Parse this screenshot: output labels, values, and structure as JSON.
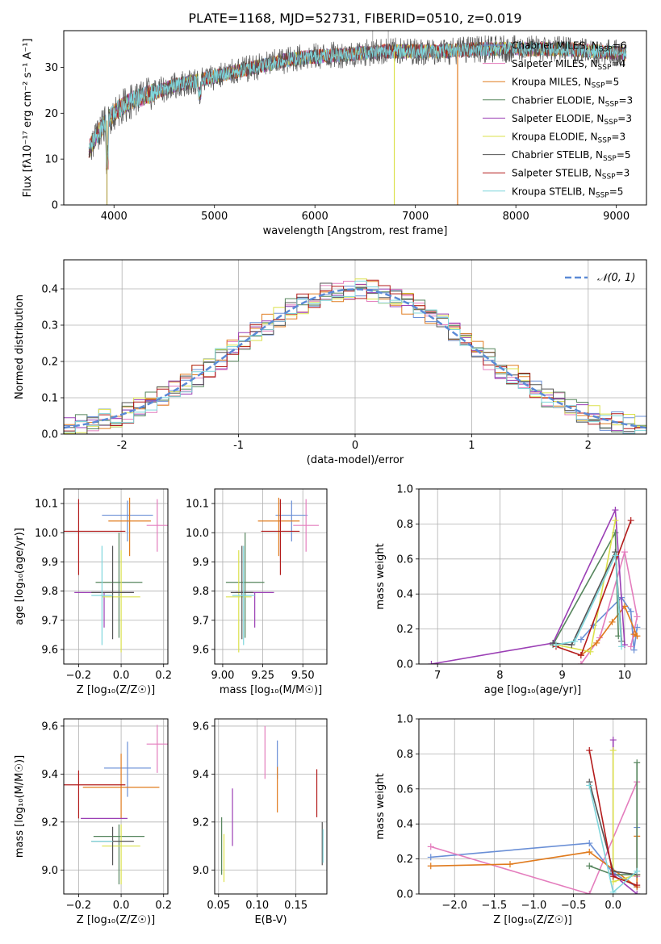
{
  "figure_title": "PLATE=1168, MJD=52731, FIBERID=0510, z=0.019",
  "colors": {
    "chabrier_miles": "#6a8fd6",
    "salpeter_miles": "#e47dbd",
    "kroupa_miles": "#e07b1e",
    "chabrier_elodie": "#55855c",
    "salpeter_elodie": "#9b3fb5",
    "kroupa_elodie": "#dbe14b",
    "chabrier_stelib": "#555555",
    "salpeter_stelib": "#b31b1b",
    "kroupa_stelib": "#7fd6dc"
  },
  "chart_data": [
    {
      "id": "spectrum",
      "type": "line",
      "title": "PLATE=1168, MJD=52731, FIBERID=0510, z=0.019",
      "xlabel": "wavelength [Angstrom, rest frame]",
      "ylabel": "Flux [fλ10⁻¹⁷ erg cm⁻² s⁻¹ A⁻¹]",
      "xlim": [
        3500,
        9300
      ],
      "ylim": [
        0,
        38
      ],
      "xticks": [
        4000,
        5000,
        6000,
        7000,
        8000,
        9000
      ],
      "yticks": [
        0,
        10,
        20,
        30
      ],
      "legend_position": "right",
      "legend": [
        {
          "text": "Chabrier MILES, N",
          "sub": "SSP",
          "tail": "=6",
          "color": "#6a8fd6"
        },
        {
          "text": "Salpeter MILES, N",
          "sub": "SSP",
          "tail": "=4",
          "color": "#e47dbd"
        },
        {
          "text": "Kroupa MILES, N",
          "sub": "SSP",
          "tail": "=5",
          "color": "#e07b1e"
        },
        {
          "text": "Chabrier ELODIE, N",
          "sub": "SSP",
          "tail": "=3",
          "color": "#55855c"
        },
        {
          "text": "Salpeter ELODIE, N",
          "sub": "SSP",
          "tail": "=3",
          "color": "#9b3fb5"
        },
        {
          "text": "Kroupa ELODIE, N",
          "sub": "SSP",
          "tail": "=3",
          "color": "#dbe14b"
        },
        {
          "text": "Chabrier STELIB, N",
          "sub": "SSP",
          "tail": "=5",
          "color": "#555555"
        },
        {
          "text": "Salpeter STELIB, N",
          "sub": "SSP",
          "tail": "=3",
          "color": "#b31b1b"
        },
        {
          "text": "Kroupa STELIB, N",
          "sub": "SSP",
          "tail": "=5",
          "color": "#7fd6dc"
        }
      ],
      "continuum": {
        "x": [
          3750,
          3850,
          3950,
          4050,
          4200,
          4400,
          4600,
          4800,
          5000,
          5200,
          5500,
          5800,
          6100,
          6400,
          6700,
          7000,
          7300,
          7600,
          7900,
          8200,
          8500,
          8800,
          9100
        ],
        "y": [
          12,
          16,
          19,
          21,
          23,
          24.5,
          26,
          27,
          28,
          29,
          30.5,
          32,
          32.5,
          33,
          33.5,
          33.5,
          33.5,
          34,
          34,
          34,
          34,
          33.5,
          33
        ]
      },
      "drops": [
        {
          "x": 3930,
          "color": "#b2a04a"
        },
        {
          "x": 6790,
          "color": "#dbe14b"
        },
        {
          "x": 7420,
          "color": "#e07b1e"
        }
      ],
      "spikes": [
        {
          "x": 6575,
          "y": 38
        },
        {
          "x": 6730,
          "y": 38
        }
      ]
    },
    {
      "id": "residuals",
      "type": "step",
      "xlabel": "(data-model)/error",
      "ylabel": "Normed distribution",
      "xlim": [
        -2.5,
        2.5
      ],
      "ylim": [
        0,
        0.48
      ],
      "xticks": [
        -2,
        -1,
        0,
        1,
        2
      ],
      "yticks": [
        0.0,
        0.1,
        0.2,
        0.3,
        0.4
      ],
      "legend_position": "top-right",
      "legend": "𝒩(0, 1)",
      "gaussian": {
        "mean": 0,
        "sigma": 1,
        "color": "#5b8ad6"
      },
      "bin_width": 0.1
    },
    {
      "id": "age_vs_Z",
      "type": "errorbar",
      "xlabel": "Z [log₁₀(Z/Z☉)]",
      "ylabel": "age  [log₁₀(age/yr)]",
      "xlim": [
        -0.27,
        0.22
      ],
      "ylim": [
        9.55,
        10.15
      ],
      "xticks": [
        -0.2,
        0.0,
        0.2
      ],
      "yticks": [
        9.6,
        9.7,
        9.8,
        9.9,
        10.0,
        10.1
      ],
      "points": [
        {
          "x": 0.03,
          "y": 10.06,
          "xerr": 0.12,
          "yerr": [
            0.09,
            0.05
          ],
          "color": "#6a8fd6"
        },
        {
          "x": 0.17,
          "y": 10.025,
          "xerr": 0.05,
          "yerr": [
            0.09,
            0.09
          ],
          "color": "#e47dbd"
        },
        {
          "x": 0.04,
          "y": 10.04,
          "xerr": 0.1,
          "yerr": [
            0.12,
            0.08
          ],
          "color": "#e07b1e"
        },
        {
          "x": -0.01,
          "y": 9.83,
          "xerr": 0.11,
          "yerr": [
            0.19,
            0.17
          ],
          "color": "#55855c"
        },
        {
          "x": -0.08,
          "y": 9.795,
          "xerr": 0.14,
          "yerr": [
            0.12,
            0.0
          ],
          "color": "#9b3fb5"
        },
        {
          "x": 0.0,
          "y": 9.78,
          "xerr": 0.09,
          "yerr": [
            0.19,
            0.16
          ],
          "color": "#dbe14b"
        },
        {
          "x": -0.04,
          "y": 9.795,
          "xerr": 0.1,
          "yerr": [
            0.16,
            0.16
          ],
          "color": "#555555"
        },
        {
          "x": -0.2,
          "y": 10.005,
          "xerr": 0.22,
          "yerr": [
            0.15,
            0.11
          ],
          "color": "#b31b1b"
        },
        {
          "x": -0.09,
          "y": 9.785,
          "xerr": 0.05,
          "yerr": [
            0.17,
            0.17
          ],
          "color": "#7fd6dc"
        }
      ]
    },
    {
      "id": "age_vs_mass",
      "type": "errorbar",
      "xlabel": "mass [log₁₀(M/M☉)]",
      "xlim": [
        8.95,
        9.65
      ],
      "ylim": [
        9.55,
        10.15
      ],
      "xticks": [
        9.0,
        9.25,
        9.5
      ],
      "yticks": [
        9.6,
        9.7,
        9.8,
        9.9,
        10.0,
        10.1
      ],
      "points": [
        {
          "x": 9.43,
          "y": 10.06,
          "xerr": 0.1,
          "yerr": [
            0.09,
            0.05
          ],
          "color": "#6a8fd6"
        },
        {
          "x": 9.52,
          "y": 10.025,
          "xerr": 0.08,
          "yerr": [
            0.09,
            0.09
          ],
          "color": "#e47dbd"
        },
        {
          "x": 9.35,
          "y": 10.04,
          "xerr": 0.13,
          "yerr": [
            0.12,
            0.08
          ],
          "color": "#e07b1e"
        },
        {
          "x": 9.14,
          "y": 9.83,
          "xerr": 0.12,
          "yerr": [
            0.19,
            0.17
          ],
          "color": "#55855c"
        },
        {
          "x": 9.2,
          "y": 9.795,
          "xerr": 0.12,
          "yerr": [
            0.12,
            0.0
          ],
          "color": "#9b3fb5"
        },
        {
          "x": 9.1,
          "y": 9.78,
          "xerr": 0.08,
          "yerr": [
            0.19,
            0.16
          ],
          "color": "#dbe14b"
        },
        {
          "x": 9.12,
          "y": 9.795,
          "xerr": 0.07,
          "yerr": [
            0.16,
            0.16
          ],
          "color": "#555555"
        },
        {
          "x": 9.36,
          "y": 10.005,
          "xerr": 0.12,
          "yerr": [
            0.15,
            0.11
          ],
          "color": "#b31b1b"
        },
        {
          "x": 9.13,
          "y": 9.785,
          "xerr": 0.07,
          "yerr": [
            0.17,
            0.17
          ],
          "color": "#7fd6dc"
        }
      ]
    },
    {
      "id": "weight_vs_age",
      "type": "line",
      "xlabel": "age  [log₁₀(age/yr)]",
      "ylabel": "mass weight",
      "xlim": [
        6.7,
        10.35
      ],
      "ylim": [
        0,
        1
      ],
      "xticks": [
        7,
        8,
        9,
        10
      ],
      "yticks": [
        0.0,
        0.2,
        0.4,
        0.6,
        0.8,
        1.0
      ],
      "series": [
        {
          "color": "#6a8fd6",
          "x": [
            9.3,
            9.5,
            9.95,
            10.1,
            10.15,
            10.2
          ],
          "y": [
            0.14,
            0.22,
            0.38,
            0.3,
            0.08,
            0.21
          ]
        },
        {
          "color": "#e47dbd",
          "x": [
            9.3,
            9.6,
            10.0,
            10.2,
            10.1
          ],
          "y": [
            0.0,
            0.15,
            0.64,
            0.27,
            0.1
          ]
        },
        {
          "color": "#e07b1e",
          "x": [
            9.3,
            9.55,
            9.8,
            10.0,
            10.2,
            10.15
          ],
          "y": [
            0.05,
            0.12,
            0.24,
            0.33,
            0.16,
            0.17
          ]
        },
        {
          "color": "#55855c",
          "x": [
            8.85,
            9.85,
            9.9
          ],
          "y": [
            0.11,
            0.75,
            0.16
          ]
        },
        {
          "color": "#9b3fb5",
          "x": [
            6.9,
            8.85,
            9.85,
            10.0
          ],
          "y": [
            0.0,
            0.12,
            0.88,
            0.11
          ]
        },
        {
          "color": "#dbe14b",
          "x": [
            8.9,
            9.45,
            9.85
          ],
          "y": [
            0.11,
            0.07,
            0.82
          ]
        },
        {
          "color": "#555555",
          "x": [
            8.85,
            9.15,
            9.85,
            9.95
          ],
          "y": [
            0.12,
            0.11,
            0.64,
            0.13
          ]
        },
        {
          "color": "#b31b1b",
          "x": [
            8.9,
            9.3,
            10.1
          ],
          "y": [
            0.1,
            0.05,
            0.82
          ]
        },
        {
          "color": "#7fd6dc",
          "x": [
            8.9,
            9.2,
            9.85,
            9.95
          ],
          "y": [
            0.11,
            0.13,
            0.62,
            0.1
          ]
        }
      ]
    },
    {
      "id": "mass_vs_Z",
      "type": "errorbar",
      "xlabel": "Z [log₁₀(Z/Z☉)]",
      "ylabel": "mass [log₁₀(M/M☉)]",
      "xlim": [
        -0.27,
        0.22
      ],
      "ylim": [
        8.9,
        9.63
      ],
      "xticks": [
        -0.2,
        0.0,
        0.2
      ],
      "yticks": [
        9.0,
        9.2,
        9.4,
        9.6
      ],
      "points": [
        {
          "x": 0.03,
          "y": 9.425,
          "xerr": 0.11,
          "yerr": [
            0.12,
            0.11
          ],
          "color": "#6a8fd6"
        },
        {
          "x": 0.17,
          "y": 9.525,
          "xerr": 0.05,
          "yerr": [
            0.12,
            0.08
          ],
          "color": "#e47dbd"
        },
        {
          "x": 0.0,
          "y": 9.345,
          "xerr": 0.18,
          "yerr": [
            0.13,
            0.14
          ],
          "color": "#e07b1e"
        },
        {
          "x": -0.01,
          "y": 9.14,
          "xerr": 0.12,
          "yerr": [
            0.2,
            0.05
          ],
          "color": "#55855c"
        },
        {
          "x": -0.08,
          "y": 9.215,
          "xerr": 0.11,
          "yerr": [
            0.0,
            0.0
          ],
          "color": "#9b3fb5"
        },
        {
          "x": 0.0,
          "y": 9.1,
          "xerr": 0.09,
          "yerr": [
            0.16,
            0.09
          ],
          "color": "#dbe14b"
        },
        {
          "x": -0.04,
          "y": 9.12,
          "xerr": 0.1,
          "yerr": [
            0.1,
            0.06
          ],
          "color": "#555555"
        },
        {
          "x": -0.2,
          "y": 9.355,
          "xerr": 0.22,
          "yerr": [
            0.14,
            0.06
          ],
          "color": "#b31b1b"
        },
        {
          "x": -0.09,
          "y": 9.12,
          "xerr": 0.05,
          "yerr": [
            0.0,
            0.0
          ],
          "color": "#7fd6dc"
        }
      ]
    },
    {
      "id": "mass_vs_ebv",
      "type": "errorbar",
      "xlabel": "E(B-V)",
      "xlim": [
        0.045,
        0.19
      ],
      "ylim": [
        8.9,
        9.63
      ],
      "xticks": [
        0.05,
        0.1,
        0.15
      ],
      "yticks": [
        9.0,
        9.2,
        9.4,
        9.6
      ],
      "points": [
        {
          "x": 0.126,
          "y": 9.46,
          "xerr": 0,
          "yerr": [
            0.08,
            0.08
          ],
          "color": "#6a8fd6"
        },
        {
          "x": 0.11,
          "y": 9.5,
          "xerr": 0,
          "yerr": [
            0.12,
            0.1
          ],
          "color": "#e47dbd"
        },
        {
          "x": 0.126,
          "y": 9.33,
          "xerr": 0,
          "yerr": [
            0.09,
            0.1
          ],
          "color": "#e07b1e"
        },
        {
          "x": 0.054,
          "y": 9.1,
          "xerr": 0,
          "yerr": [
            0.12,
            0.12
          ],
          "color": "#55855c"
        },
        {
          "x": 0.068,
          "y": 9.22,
          "xerr": 0,
          "yerr": [
            0.12,
            0.12
          ],
          "color": "#9b3fb5"
        },
        {
          "x": 0.057,
          "y": 9.05,
          "xerr": 0,
          "yerr": [
            0.1,
            0.1
          ],
          "color": "#dbe14b"
        },
        {
          "x": 0.184,
          "y": 9.11,
          "xerr": 0,
          "yerr": [
            0.09,
            0.09
          ],
          "color": "#555555"
        },
        {
          "x": 0.177,
          "y": 9.32,
          "xerr": 0,
          "yerr": [
            0.1,
            0.1
          ],
          "color": "#b31b1b"
        },
        {
          "x": 0.185,
          "y": 9.1,
          "xerr": 0,
          "yerr": [
            0.07,
            0.07
          ],
          "color": "#7fd6dc"
        }
      ]
    },
    {
      "id": "weight_vs_Z",
      "type": "line",
      "xlabel": "Z [log₁₀(Z/Z☉)]",
      "ylabel": "mass weight",
      "xlim": [
        -2.45,
        0.42
      ],
      "ylim": [
        0,
        1
      ],
      "xticks": [
        -2.0,
        -1.5,
        -1.0,
        -0.5,
        0.0
      ],
      "yticks": [
        0.0,
        0.2,
        0.4,
        0.6,
        0.8,
        1.0
      ],
      "series": [
        {
          "color": "#6a8fd6",
          "x": [
            -2.3,
            -0.3,
            0.0,
            0.3,
            0.3
          ],
          "y": [
            0.21,
            0.29,
            0.12,
            0.04,
            0.38
          ]
        },
        {
          "color": "#e47dbd",
          "x": [
            -2.3,
            -0.3,
            0.3,
            0.3
          ],
          "y": [
            0.27,
            0.0,
            0.64,
            0.1
          ]
        },
        {
          "color": "#e07b1e",
          "x": [
            -2.3,
            -1.3,
            -0.3,
            0.3,
            0.3
          ],
          "y": [
            0.16,
            0.17,
            0.24,
            0.04,
            0.33
          ]
        },
        {
          "color": "#55855c",
          "x": [
            -0.3,
            0.0,
            0.3,
            0.3
          ],
          "y": [
            0.16,
            0.11,
            0.11,
            0.75
          ]
        },
        {
          "color": "#9b3fb5",
          "x": [
            0.0,
            0.0,
            0.3
          ],
          "y": [
            0.88,
            0.11,
            0.0
          ]
        },
        {
          "color": "#dbe14b",
          "x": [
            0.0,
            0.0,
            0.3
          ],
          "y": [
            0.82,
            0.07,
            0.11
          ]
        },
        {
          "color": "#555555",
          "x": [
            -0.3,
            0.0,
            0.3
          ],
          "y": [
            0.64,
            0.13,
            0.11
          ]
        },
        {
          "color": "#b31b1b",
          "x": [
            -0.3,
            0.0,
            0.3
          ],
          "y": [
            0.82,
            0.1,
            0.05
          ]
        },
        {
          "color": "#7fd6dc",
          "x": [
            -0.3,
            0.0,
            0.3
          ],
          "y": [
            0.62,
            0.01,
            0.13
          ]
        }
      ]
    }
  ]
}
